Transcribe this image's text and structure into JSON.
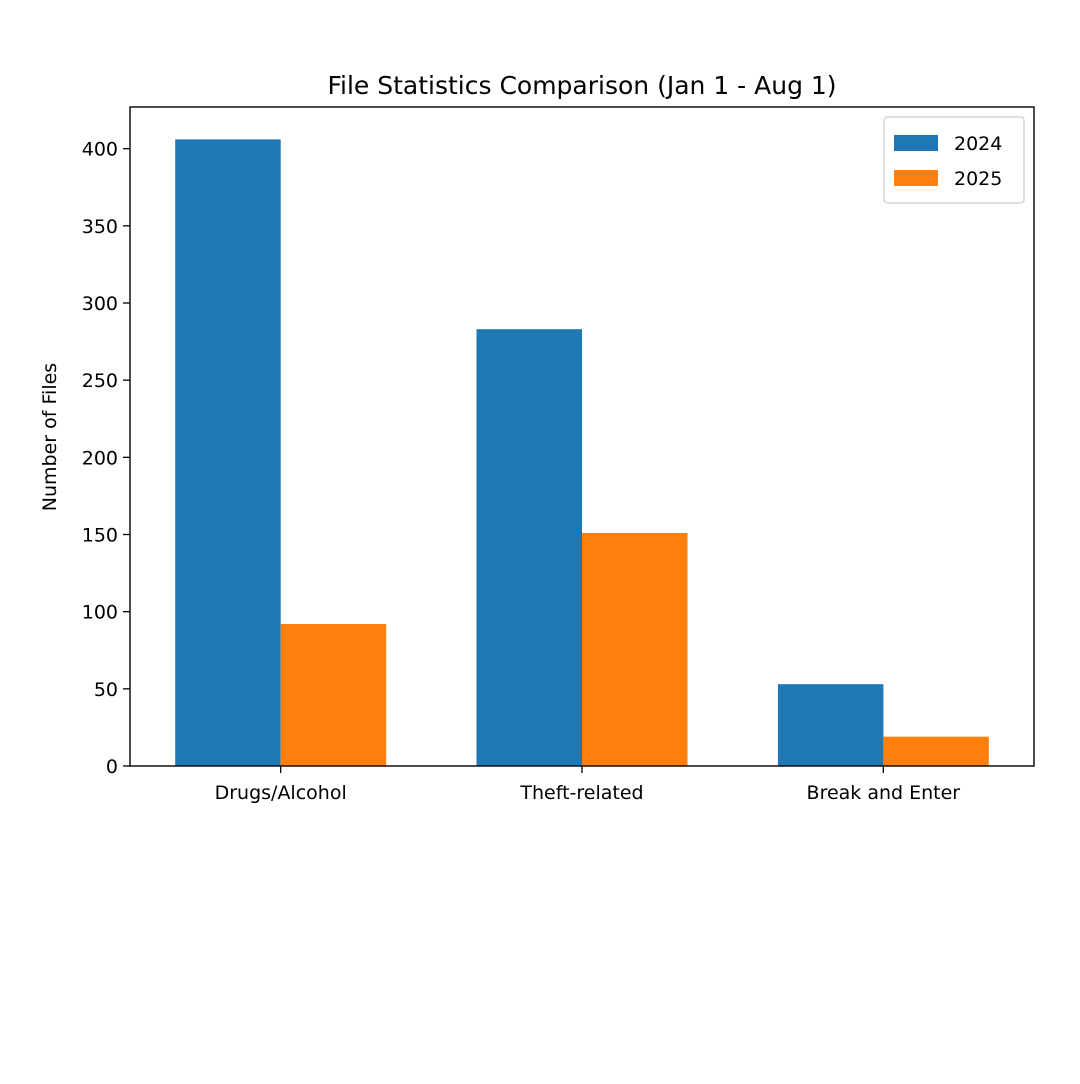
{
  "chart_data": {
    "type": "bar",
    "title": "File Statistics Comparison (Jan 1 - Aug 1)",
    "xlabel": "",
    "ylabel": "Number of Files",
    "categories": [
      "Drugs/Alcohol",
      "Theft-related",
      "Break and Enter"
    ],
    "series": [
      {
        "name": "2024",
        "values": [
          406,
          283,
          53
        ],
        "color": "#1f77b4"
      },
      {
        "name": "2025",
        "values": [
          92,
          151,
          19
        ],
        "color": "#ff7f0e"
      }
    ],
    "ylim": [
      0,
      427
    ],
    "yticks": [
      0,
      50,
      100,
      150,
      200,
      250,
      300,
      350,
      400
    ],
    "legend_position": "top-right",
    "grid": false
  }
}
